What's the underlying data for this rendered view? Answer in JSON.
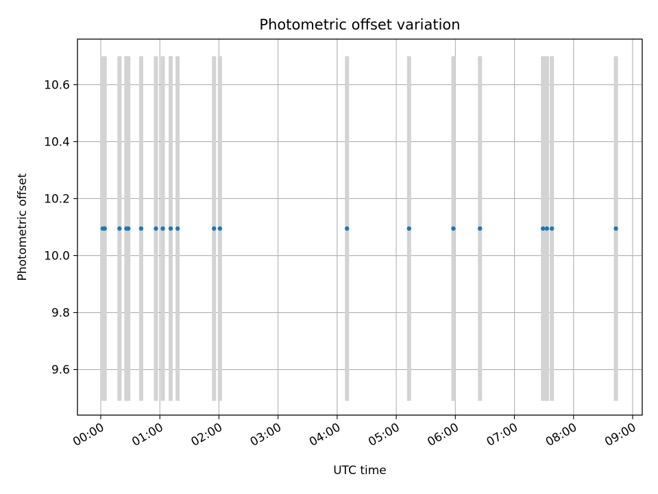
{
  "chart_data": {
    "type": "scatter",
    "title": "Photometric offset variation",
    "xlabel": "UTC time",
    "ylabel": "Photometric offset",
    "x_format": "HH:MM",
    "xlim": [
      "2000-01-01T00:00",
      "2000-01-01T09:00"
    ],
    "ylim": [
      9.44,
      10.76
    ],
    "grid": true,
    "x_ticks": [
      "00:00",
      "01:00",
      "02:00",
      "03:00",
      "04:00",
      "05:00",
      "06:00",
      "07:00",
      "08:00",
      "09:00"
    ],
    "y_ticks": [
      "9.6",
      "9.8",
      "10.0",
      "10.2",
      "10.4",
      "10.6"
    ],
    "y_tick_values": [
      9.6,
      9.8,
      10.0,
      10.2,
      10.4,
      10.6
    ],
    "band_range": [
      9.49,
      10.7
    ],
    "series": [
      {
        "color": "#1f77b4",
        "x": [
          "00:02",
          "00:04",
          "00:19",
          "00:26",
          "00:28",
          "00:41",
          "00:56",
          "01:03",
          "01:11",
          "01:18",
          "01:55",
          "02:01",
          "04:10",
          "05:13",
          "05:58",
          "06:25",
          "07:29",
          "07:33",
          "07:38",
          "08:43"
        ],
        "y": [
          10.095,
          10.095,
          10.095,
          10.095,
          10.095,
          10.095,
          10.095,
          10.095,
          10.095,
          10.095,
          10.095,
          10.095,
          10.095,
          10.095,
          10.095,
          10.095,
          10.095,
          10.095,
          10.095,
          10.095
        ]
      }
    ],
    "band_color": "#d3d3d3"
  }
}
